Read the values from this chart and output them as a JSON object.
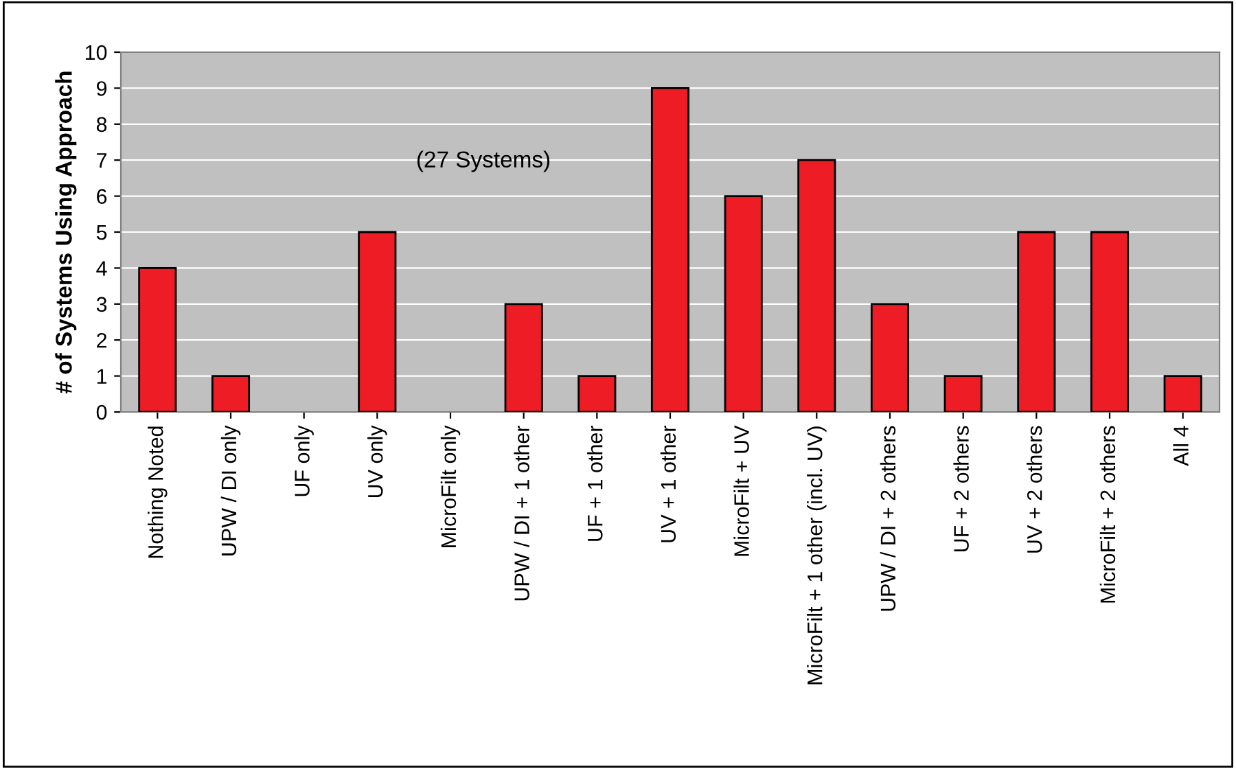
{
  "chart_data": {
    "type": "bar",
    "ylabel": "# of Systems Using Approach",
    "categories": [
      "Nothing Noted",
      "UPW / DI only",
      "UF only",
      "UV only",
      "MicroFilt only",
      "UPW / DI + 1 other",
      "UF + 1 other",
      "UV + 1 other",
      "MicroFilt + UV",
      "MicroFilt + 1 other (incl. UV)",
      "UPW / DI + 2 others",
      "UF + 2 others",
      "UV + 2 others",
      "MicroFilt + 2 others",
      "All 4"
    ],
    "values": [
      4,
      1,
      0,
      5,
      0,
      3,
      1,
      9,
      6,
      7,
      3,
      1,
      5,
      5,
      1
    ],
    "color": "#ee1c24",
    "ylim": [
      0,
      10
    ],
    "yticks": [
      0,
      1,
      2,
      3,
      4,
      5,
      6,
      7,
      8,
      9,
      10
    ],
    "grid": "y",
    "annotations": [
      "(27 Systems)"
    ]
  }
}
